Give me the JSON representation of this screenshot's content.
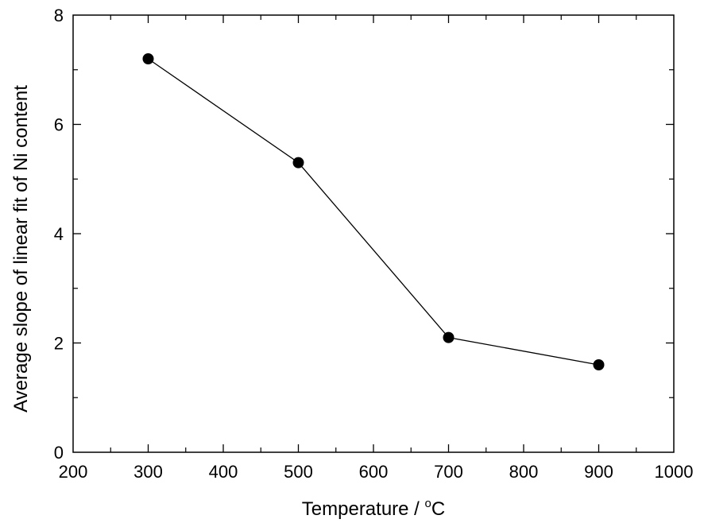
{
  "chart_data": {
    "type": "line",
    "xlabel": "Temperature / °C",
    "xlabel_main": "Temperature / ",
    "xlabel_sup": "o",
    "xlabel_unit": "C",
    "ylabel": "Average slope of linear fit of Ni content",
    "xlim": [
      200,
      1000
    ],
    "ylim": [
      0,
      8
    ],
    "x_ticks": [
      200,
      300,
      400,
      500,
      600,
      700,
      800,
      900,
      1000
    ],
    "y_ticks": [
      0,
      2,
      4,
      6,
      8
    ],
    "grid": false,
    "series": [
      {
        "x": [
          300,
          500,
          700,
          900
        ],
        "y": [
          7.2,
          5.3,
          2.1,
          1.6
        ],
        "marker": "filled-circle",
        "color": "#000000"
      }
    ]
  }
}
